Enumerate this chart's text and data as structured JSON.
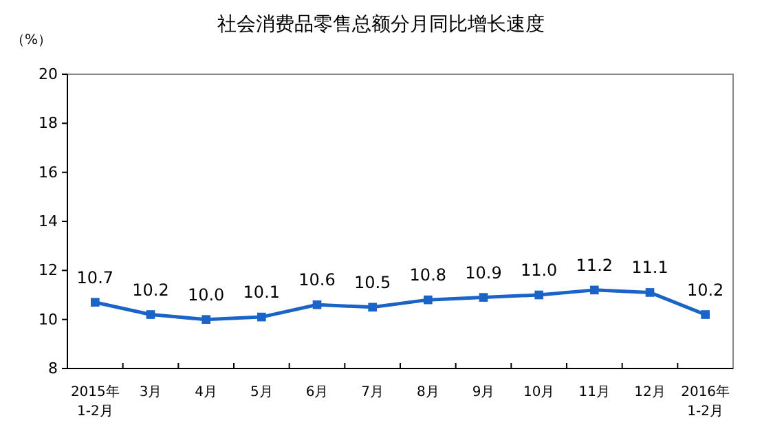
{
  "chart_data": {
    "type": "line",
    "title": "社会消费品零售总额分月同比增长速度",
    "ylabel": "（%）",
    "categories": [
      "2015年\n1-2月",
      "3月",
      "4月",
      "5月",
      "6月",
      "7月",
      "8月",
      "9月",
      "10月",
      "11月",
      "12月",
      "2016年\n1-2月"
    ],
    "series": [
      {
        "color": "#1a64c8",
        "values": [
          10.7,
          10.2,
          10.0,
          10.1,
          10.6,
          10.5,
          10.8,
          10.9,
          11.0,
          11.2,
          11.1,
          10.2
        ],
        "value_labels": [
          "10.7",
          "10.2",
          "10.0",
          "10.1",
          "10.6",
          "10.5",
          "10.8",
          "10.9",
          "11.0",
          "11.2",
          "11.1",
          "10.2"
        ]
      }
    ],
    "ylim": [
      8,
      20
    ],
    "yticks": [
      8,
      10,
      12,
      14,
      16,
      18,
      20
    ],
    "marker": "square",
    "line_style": "solid"
  }
}
